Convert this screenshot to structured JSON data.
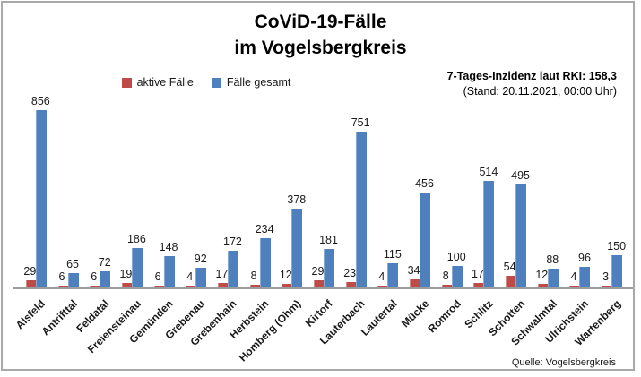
{
  "title": {
    "line1": "CoViD-19-Fälle",
    "line2": "im Vogelsbergkreis"
  },
  "legend": {
    "items": [
      {
        "label": "aktive Fälle",
        "color": "#be4b48"
      },
      {
        "label": "Fälle gesamt",
        "color": "#4d80bd"
      }
    ]
  },
  "incidence": {
    "line1": "7-Tages-Inzidenz laut RKI: 158,3",
    "line2": "(Stand: 20.11.2021, 00:00 Uhr)"
  },
  "source": "Quelle: Vogelsbergkreis",
  "colors": {
    "active": "#be4b48",
    "total": "#4d80bd",
    "axis": "#9c9c9c",
    "frame_border": "#a9a9a9"
  },
  "chart_data": {
    "type": "bar",
    "title": "CoViD-19-Fälle im Vogelsbergkreis",
    "categories": [
      "Alsfeld",
      "Antrifttal",
      "Feldatal",
      "Freiensteinau",
      "Gemünden",
      "Grebenau",
      "Grebenhain",
      "Herbstein",
      "Homberg (Ohm)",
      "Kirtorf",
      "Lauterbach",
      "Lautertal",
      "Mücke",
      "Romrod",
      "Schlitz",
      "Schotten",
      "Schwalmtal",
      "Ulrichstein",
      "Wartenberg"
    ],
    "series": [
      {
        "name": "aktive Fälle",
        "color": "#be4b48",
        "values": [
          29,
          6,
          6,
          19,
          6,
          4,
          17,
          8,
          12,
          29,
          23,
          4,
          34,
          8,
          17,
          54,
          12,
          4,
          3
        ]
      },
      {
        "name": "Fälle gesamt",
        "color": "#4d80bd",
        "values": [
          856,
          65,
          72,
          186,
          148,
          92,
          172,
          234,
          378,
          181,
          751,
          115,
          456,
          100,
          514,
          495,
          88,
          96,
          150
        ]
      }
    ],
    "ylim": [
      0,
      856
    ],
    "grid": false,
    "legend_position": "top-center",
    "data_labels": true,
    "x_tick_rotation": 45
  }
}
